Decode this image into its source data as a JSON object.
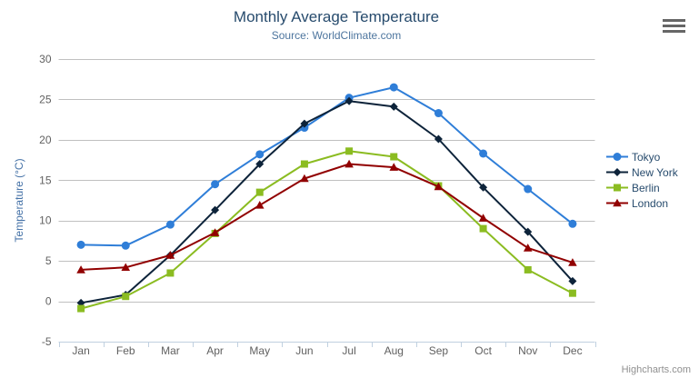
{
  "chart": {
    "credits": "Highcharts.com",
    "icons": {
      "export_menu": "hamburger-icon"
    },
    "colors": {
      "background": "#ffffff",
      "grid": "#c0c0c0",
      "axis_line": "#c0d0e0",
      "tick": "#c0d0e0",
      "title": "#274b6d",
      "subtitle": "#4d759e",
      "axis_title": "#4572a7",
      "axis_labels": "#606060",
      "legend_text": "#274b6d",
      "credits": "#909090",
      "hamburger": "#666666"
    }
  },
  "chart_data": {
    "type": "line",
    "title": "Monthly Average Temperature",
    "subtitle": "Source: WorldClimate.com",
    "xlabel": "",
    "ylabel": "Temperature (°C)",
    "categories": [
      "Jan",
      "Feb",
      "Mar",
      "Apr",
      "May",
      "Jun",
      "Jul",
      "Aug",
      "Sep",
      "Oct",
      "Nov",
      "Dec"
    ],
    "ylim": [
      -5,
      30
    ],
    "ytick_interval": 5,
    "grid": true,
    "legend_position": "right",
    "series": [
      {
        "name": "Tokyo",
        "color": "#2f7ed8",
        "marker": "circle",
        "values": [
          7.0,
          6.9,
          9.5,
          14.5,
          18.2,
          21.5,
          25.2,
          26.5,
          23.3,
          18.3,
          13.9,
          9.6
        ]
      },
      {
        "name": "New York",
        "color": "#0d233a",
        "marker": "diamond",
        "values": [
          -0.2,
          0.8,
          5.7,
          11.3,
          17.0,
          22.0,
          24.8,
          24.1,
          20.1,
          14.1,
          8.6,
          2.5
        ]
      },
      {
        "name": "Berlin",
        "color": "#8bbc21",
        "marker": "square",
        "values": [
          -0.9,
          0.6,
          3.5,
          8.4,
          13.5,
          17.0,
          18.6,
          17.9,
          14.3,
          9.0,
          3.9,
          1.0
        ]
      },
      {
        "name": "London",
        "color": "#910000",
        "marker": "triangle",
        "values": [
          3.9,
          4.2,
          5.7,
          8.5,
          11.9,
          15.2,
          17.0,
          16.6,
          14.2,
          10.3,
          6.6,
          4.8
        ]
      }
    ]
  }
}
